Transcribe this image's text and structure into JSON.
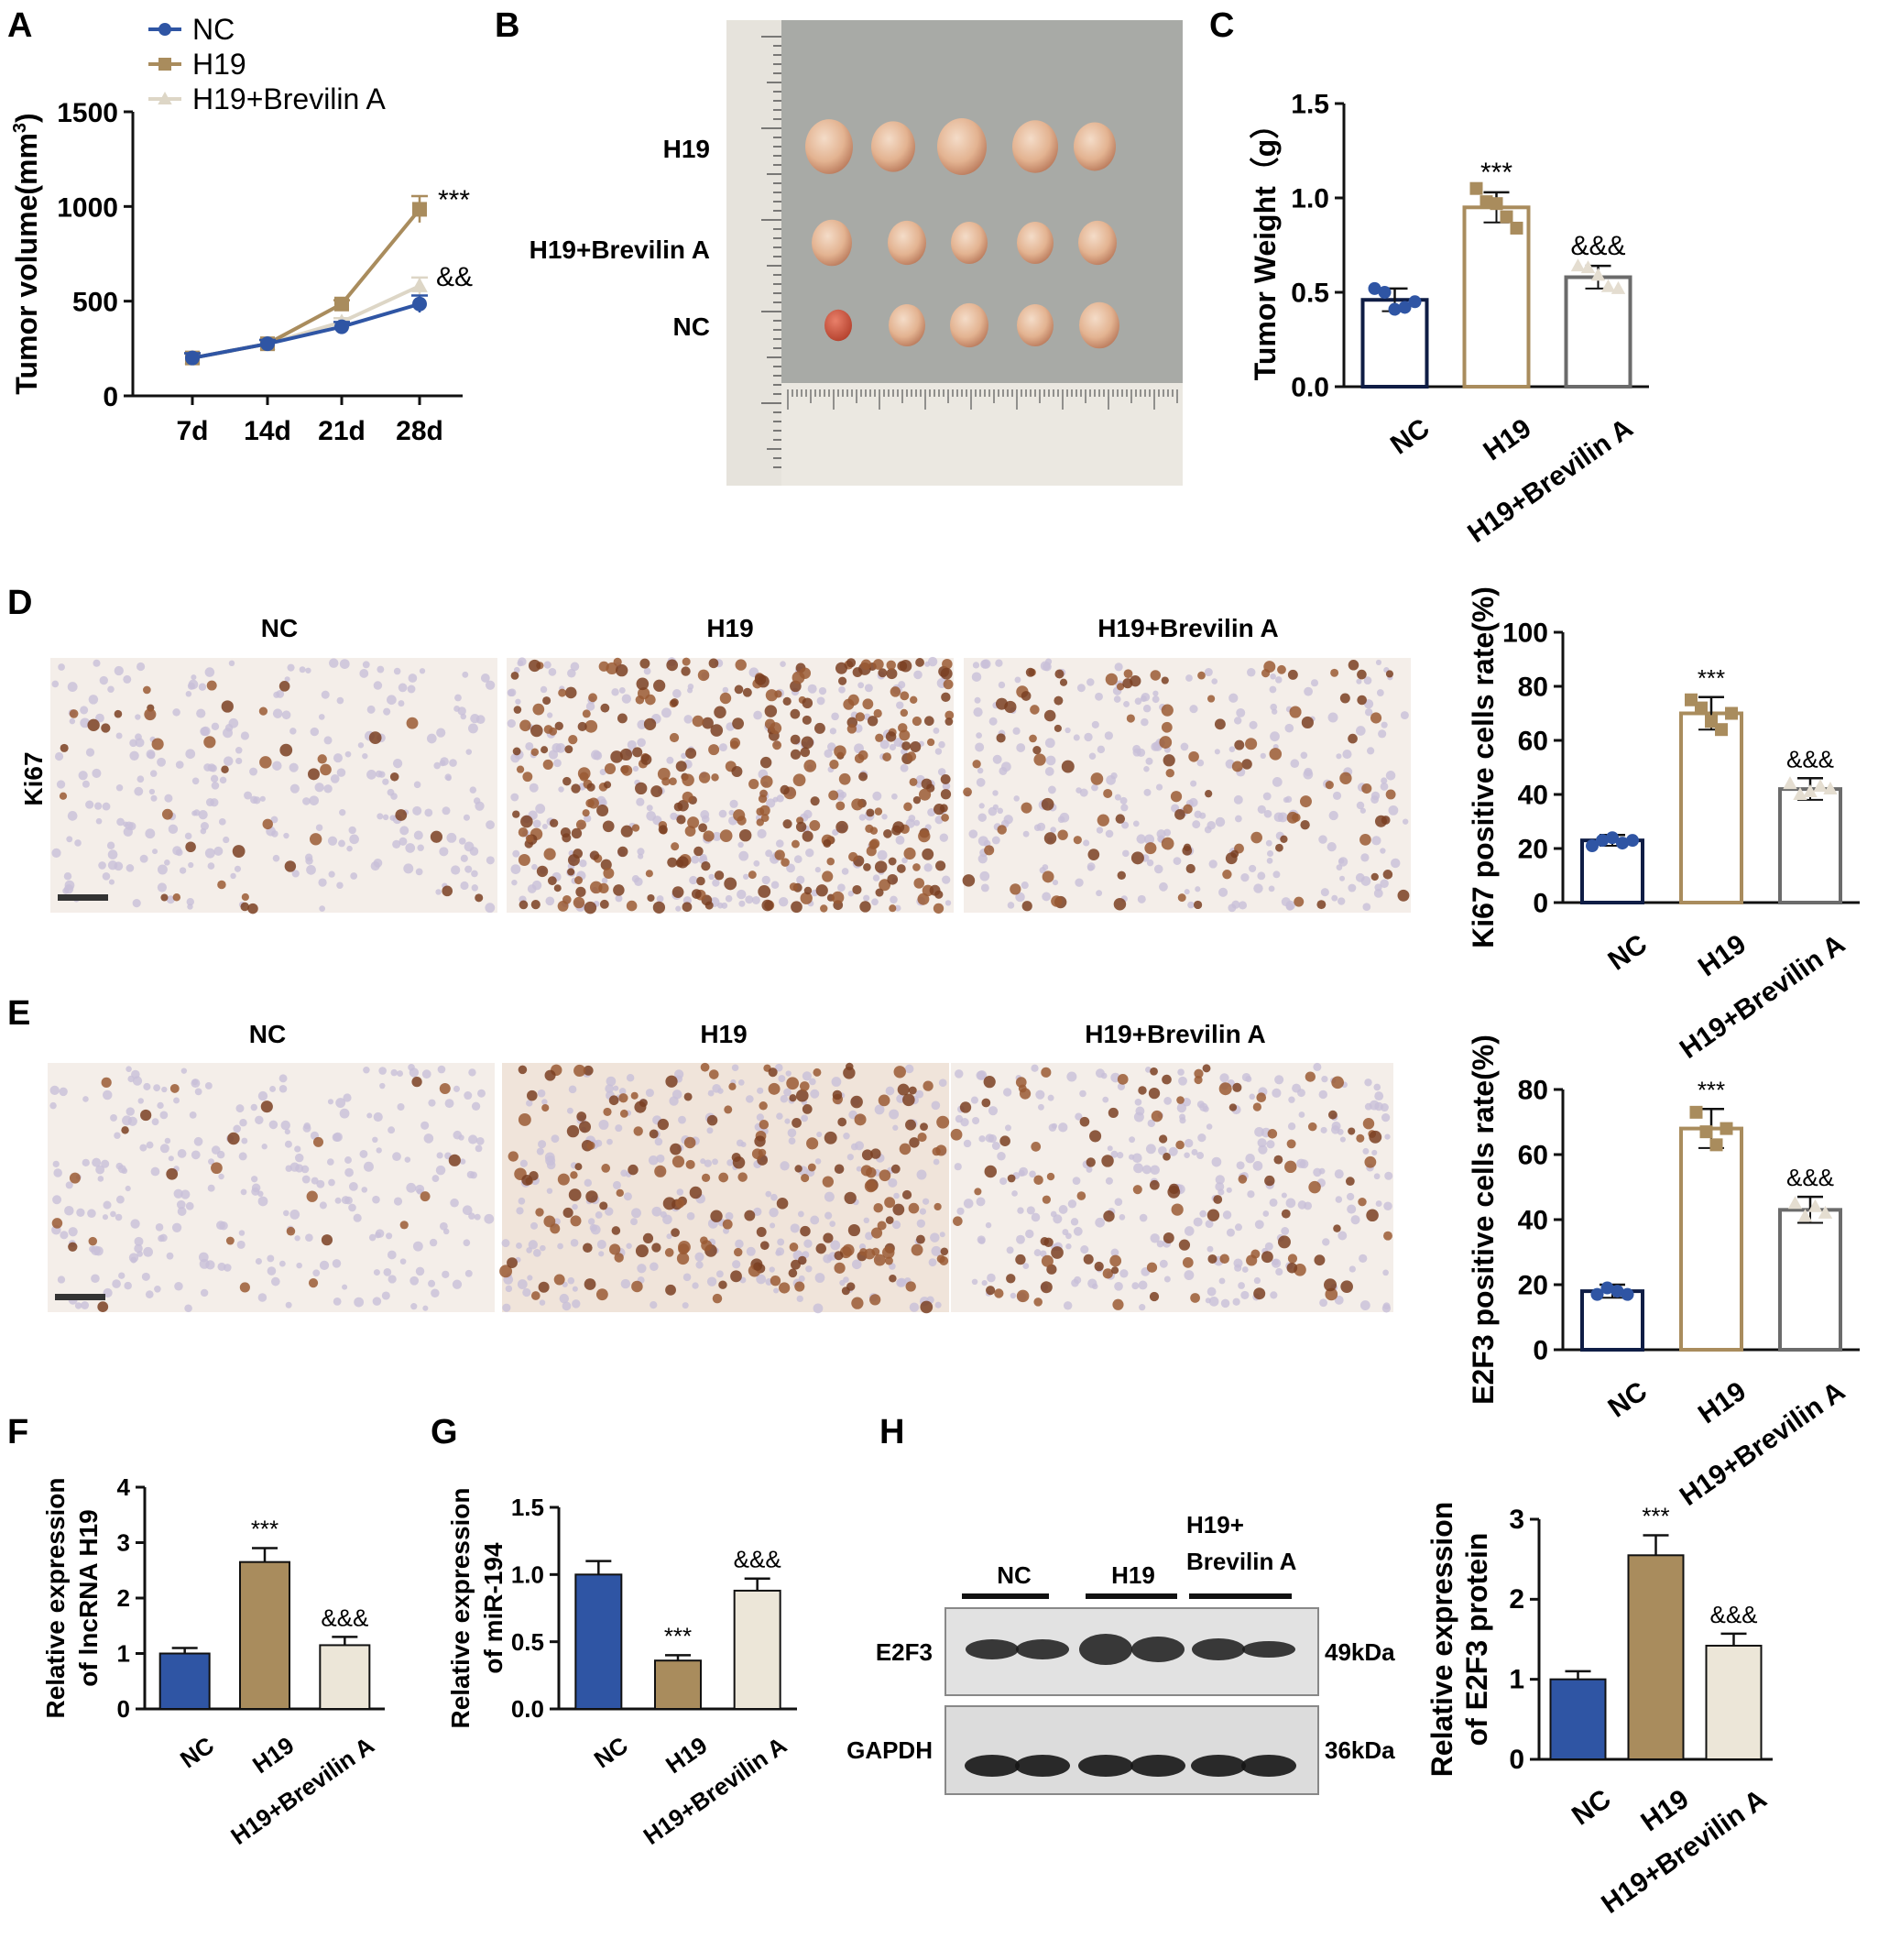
{
  "colors": {
    "nc": "#2f55a4",
    "h19": "#a98c5d",
    "brev": "#ece6d8",
    "brev_bar_outline": "#6b6b6b"
  },
  "panels": {
    "A": {
      "letter": "A"
    },
    "B": {
      "letter": "B",
      "rows": [
        "H19",
        "H19+Brevilin A",
        "NC"
      ]
    },
    "C": {
      "letter": "C"
    },
    "D": {
      "letter": "D",
      "marker": "Ki67",
      "headers": [
        "NC",
        "H19",
        "H19+Brevilin A"
      ]
    },
    "E": {
      "letter": "E",
      "headers": [
        "NC",
        "H19",
        "H19+Brevilin A"
      ]
    },
    "F": {
      "letter": "F"
    },
    "G": {
      "letter": "G"
    },
    "H": {
      "letter": "H",
      "lanes": [
        "NC",
        "H19",
        "H19+",
        "Brevilin A"
      ],
      "bands": [
        {
          "label": "E2F3",
          "kda": "49kDa"
        },
        {
          "label": "GAPDH",
          "kda": "36kDa"
        }
      ]
    }
  },
  "chart_data": [
    {
      "id": "A",
      "type": "line",
      "x": [
        "7d",
        "14d",
        "21d",
        "28d"
      ],
      "ylabel_main": "Tumor volume(mm",
      "ylabel_sup": "3",
      "ylabel_end": ")",
      "ylim": [
        0,
        1500
      ],
      "yticks": [
        0,
        500,
        1000,
        1500
      ],
      "legend_position": "top-left",
      "series": [
        {
          "name": "NC",
          "marker": "circle",
          "values": [
            200,
            275,
            365,
            485
          ],
          "err": [
            25,
            20,
            25,
            45
          ]
        },
        {
          "name": "H19",
          "marker": "square",
          "values": [
            200,
            275,
            485,
            985
          ],
          "err": [
            25,
            20,
            20,
            70
          ]
        },
        {
          "name": "H19+Brevilin A",
          "marker": "triangle",
          "values": [
            200,
            275,
            390,
            580
          ],
          "err": [
            25,
            20,
            20,
            45
          ]
        }
      ],
      "annotations": [
        "***",
        "&&"
      ]
    },
    {
      "id": "C",
      "type": "bar",
      "categories": [
        "NC",
        "H19",
        "H19+Brevilin A"
      ],
      "values": [
        0.46,
        0.95,
        0.58
      ],
      "err": [
        0.06,
        0.08,
        0.06
      ],
      "points": [
        [
          0.52,
          0.5,
          0.41,
          0.42,
          0.45
        ],
        [
          1.05,
          0.98,
          0.97,
          0.9,
          0.84
        ],
        [
          0.64,
          0.63,
          0.59,
          0.53,
          0.52
        ]
      ],
      "ylabel": "Tumor Weight（g）",
      "ylim": [
        0,
        1.5
      ],
      "yticks": [
        "0.0",
        "0.5",
        "1.0",
        "1.5"
      ],
      "legend": [
        "NC",
        "H19",
        "H19+Brevilin A"
      ],
      "legend_position": "top",
      "annotations": [
        "",
        "***",
        "&&&"
      ]
    },
    {
      "id": "D",
      "type": "bar",
      "categories": [
        "NC",
        "H19",
        "H19+Brevilin A"
      ],
      "values": [
        23,
        70,
        42
      ],
      "err": [
        2,
        6,
        4
      ],
      "points": [
        [
          21,
          23,
          24,
          22,
          23
        ],
        [
          75,
          72,
          67,
          64,
          70
        ],
        [
          44,
          40,
          41,
          43,
          42
        ]
      ],
      "ylabel": "Ki67 positive cells rate(%)",
      "ylim": [
        0,
        100
      ],
      "yticks": [
        0,
        20,
        40,
        60,
        80,
        100
      ],
      "annotations": [
        "",
        "***",
        "&&&"
      ]
    },
    {
      "id": "E",
      "type": "bar",
      "categories": [
        "NC",
        "H19",
        "H19+Brevilin A"
      ],
      "values": [
        18,
        68,
        43
      ],
      "err": [
        2,
        6,
        4
      ],
      "points": [
        [
          17,
          19,
          18,
          17
        ],
        [
          73,
          67,
          63,
          68
        ],
        [
          45,
          41,
          44,
          42
        ]
      ],
      "ylabel": "E2F3 positive cells rate(%)",
      "ylim": [
        0,
        80
      ],
      "yticks": [
        0,
        20,
        40,
        60,
        80
      ],
      "annotations": [
        "",
        "***",
        "&&&"
      ]
    },
    {
      "id": "F",
      "type": "bar",
      "categories": [
        "NC",
        "H19",
        "H19+Brevilin A"
      ],
      "values": [
        1.0,
        2.65,
        1.15
      ],
      "err": [
        0.1,
        0.25,
        0.15
      ],
      "ylabel": [
        "Relative expression",
        "of lncRNA H19"
      ],
      "ylim": [
        0,
        4
      ],
      "yticks": [
        0,
        1,
        2,
        3,
        4
      ],
      "annotations": [
        "",
        "***",
        "&&&"
      ]
    },
    {
      "id": "G",
      "type": "bar",
      "categories": [
        "NC",
        "H19",
        "H19+Brevilin A"
      ],
      "values": [
        1.0,
        0.36,
        0.88
      ],
      "err": [
        0.1,
        0.04,
        0.09
      ],
      "ylabel": [
        "Relative expression",
        "of miR-194"
      ],
      "ylim": [
        0,
        1.5
      ],
      "yticks": [
        "0.0",
        "0.5",
        "1.0",
        "1.5"
      ],
      "annotations": [
        "",
        "***",
        "&&&"
      ]
    },
    {
      "id": "H",
      "type": "bar",
      "categories": [
        "NC",
        "H19",
        "H19+Brevilin A"
      ],
      "values": [
        1.0,
        2.55,
        1.42
      ],
      "err": [
        0.1,
        0.25,
        0.15
      ],
      "ylabel": [
        "Relative expression",
        "of E2F3 protein"
      ],
      "ylim": [
        0,
        3
      ],
      "yticks": [
        0,
        1,
        2,
        3
      ],
      "annotations": [
        "",
        "***",
        "&&&"
      ]
    }
  ]
}
